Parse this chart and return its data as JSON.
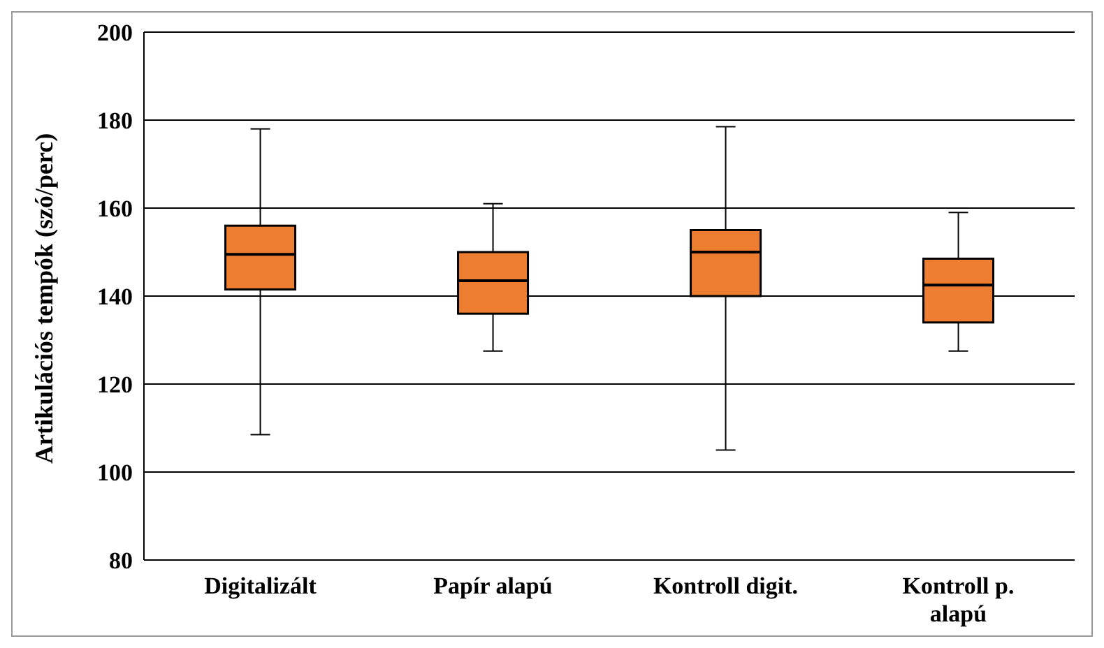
{
  "chart_data": {
    "type": "box",
    "ylabel": "Artikulációs  tempók (szó/perc)",
    "categories": [
      "Digitalizált",
      "Papír alapú",
      "Kontroll digit.",
      "Kontroll p. alapú"
    ],
    "color": "#ed7d31",
    "boxes": [
      {
        "low": 108.5,
        "q1": 141.5,
        "median": 149.5,
        "q3": 156,
        "high": 178
      },
      {
        "low": 127.5,
        "q1": 136,
        "median": 143.5,
        "q3": 150,
        "high": 161
      },
      {
        "low": 105,
        "q1": 140,
        "median": 150,
        "q3": 155,
        "high": 178.5
      },
      {
        "low": 127.5,
        "q1": 134,
        "median": 142.5,
        "q3": 148.5,
        "high": 159
      }
    ],
    "ylim": [
      80,
      200
    ],
    "yticks": [
      80,
      100,
      120,
      140,
      160,
      180,
      200
    ],
    "grid": "y",
    "legend": false
  }
}
